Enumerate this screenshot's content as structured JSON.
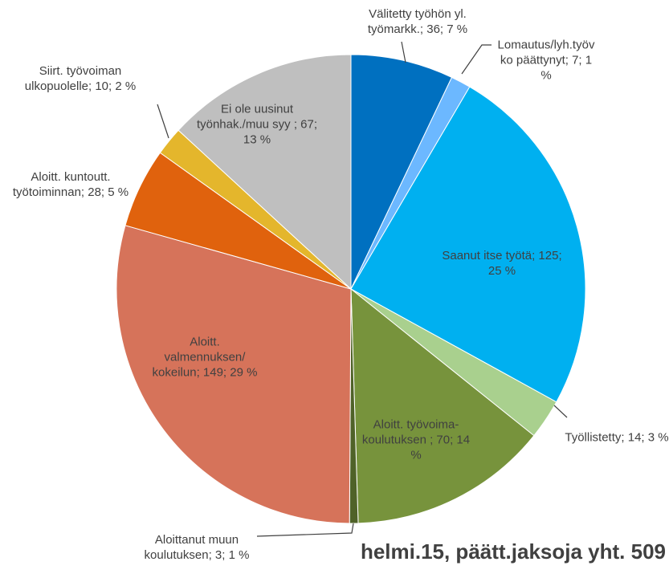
{
  "chart_data": {
    "type": "pie",
    "title": "helmi.15, päätt.jaksoja yht. 509",
    "values": [
      36,
      7,
      125,
      14,
      70,
      3,
      149,
      28,
      10,
      67
    ],
    "value_labels": [
      "Välitetty työhön yl. työmarkk.; 36; 7 %",
      "Lomautus/lyh.työvko päättynyt; 7; 1 %",
      "Saanut itse työtä; 125; 25 %",
      "Työllistetty; 14; 3 %",
      "Aloitt. työvoima-koulutuksen ; 70; 14 %",
      "Aloittanut muun koulutuksen; 3; 1 %",
      "Aloitt. valmennuksen/ kokeilun; 149; 29 %",
      "Aloitt. kuntoutt. työtoiminnan; 28; 5 %",
      "Siirt. työvoiman ulkopuolelle; 10; 2 %",
      "Ei ole uusinut työnhak./muu syy ; 67; 13 %"
    ],
    "colors": [
      "#0070c0",
      "#6cb8ff",
      "#00b0f0",
      "#a9d08e",
      "#77933c",
      "#4f6228",
      "#d6735a",
      "#e0620d",
      "#e4b62c",
      "#bfbfbf"
    ]
  }
}
